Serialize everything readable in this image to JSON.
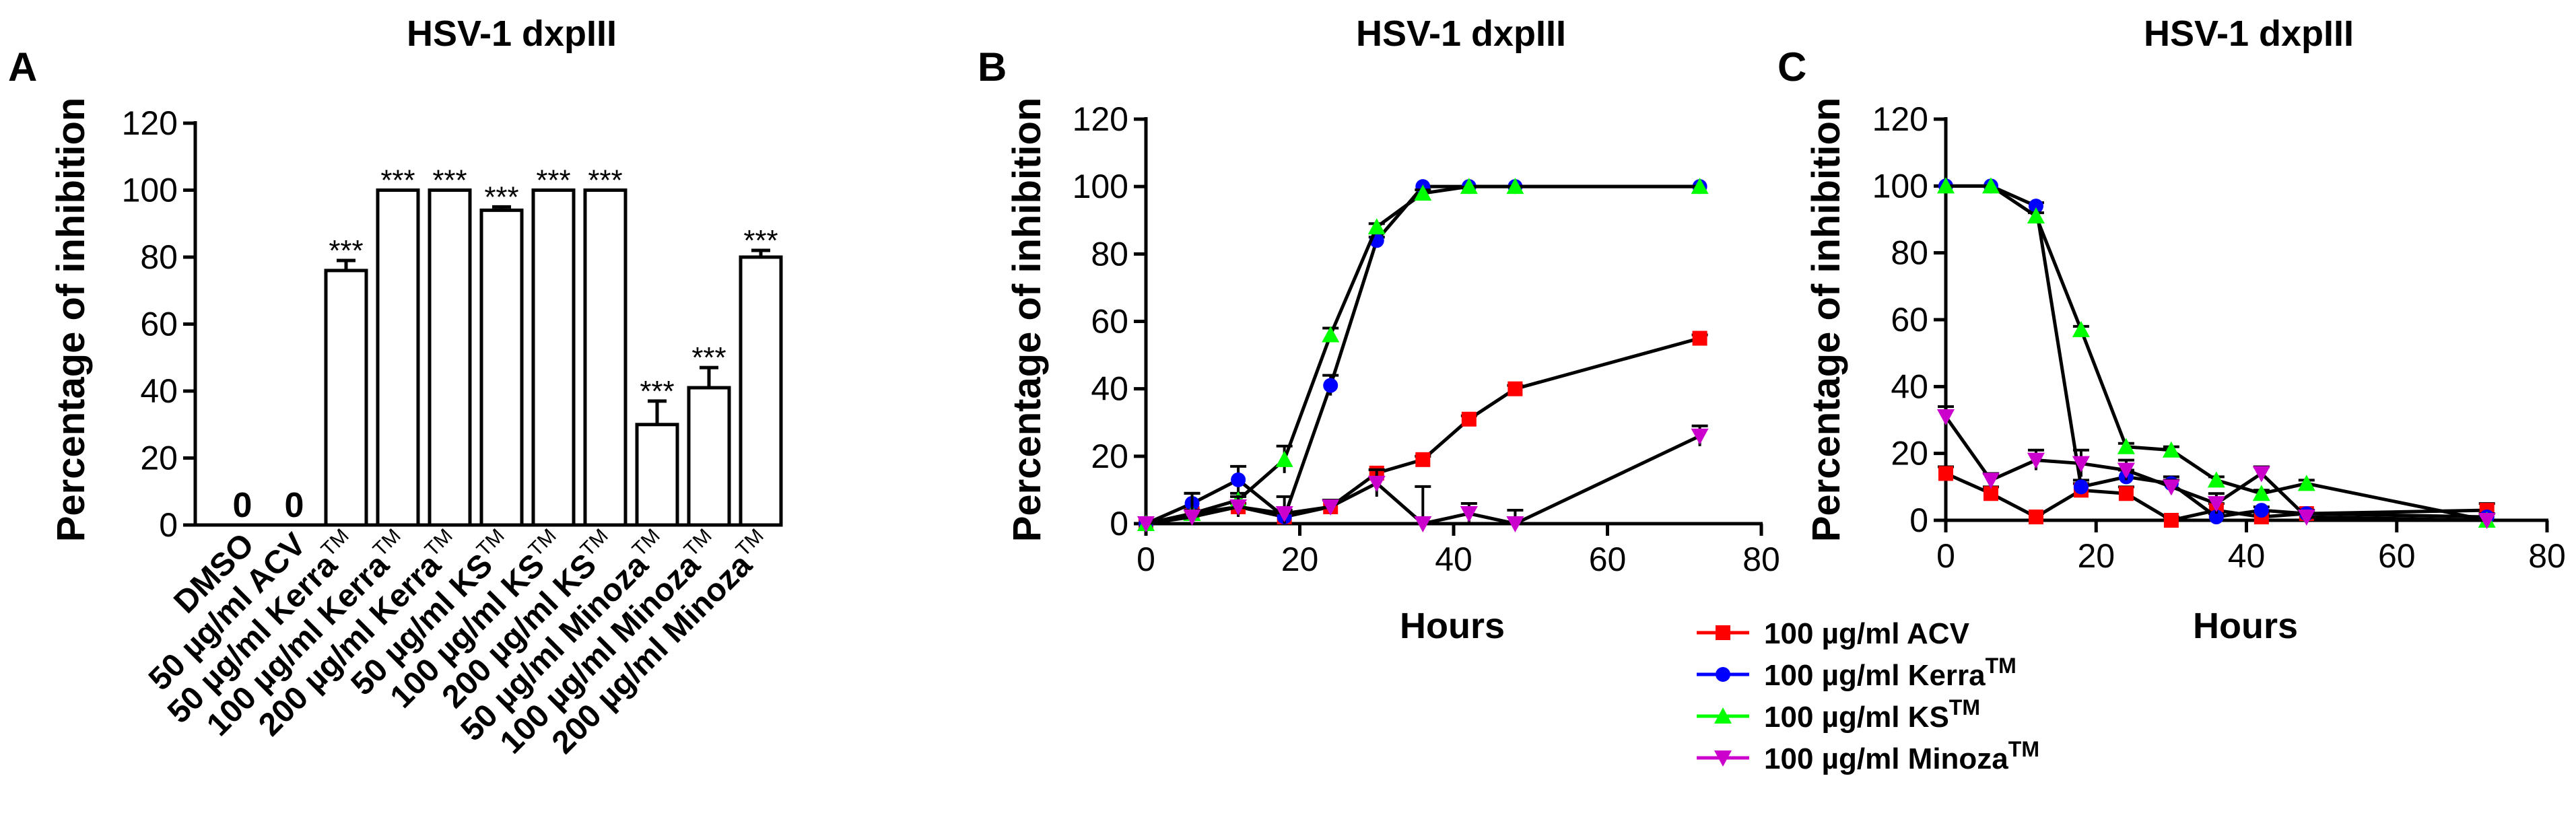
{
  "panel_a": {
    "label": "A",
    "title": "HSV-1 dxpIII",
    "ylabel": "Percentage of inhibition",
    "y_ticks": [
      "0",
      "20",
      "40",
      "60",
      "80",
      "100",
      "120"
    ]
  },
  "panel_b": {
    "label": "B",
    "title": "HSV-1 dxpIII",
    "ylabel": "Percentage of inhibition",
    "xlabel": "Hours",
    "y_ticks": [
      "0",
      "20",
      "40",
      "60",
      "80",
      "100",
      "120"
    ],
    "x_ticks": [
      "0",
      "20",
      "40",
      "60",
      "80"
    ]
  },
  "panel_c": {
    "label": "C",
    "title": "HSV-1 dxpIII",
    "ylabel": "Percentage of inhibition",
    "xlabel": "Hours",
    "y_ticks": [
      "0",
      "20",
      "40",
      "60",
      "80",
      "100",
      "120"
    ],
    "x_ticks": [
      "0",
      "20",
      "40",
      "60",
      "80"
    ]
  },
  "legend": {
    "items": [
      {
        "main": "100 µg/ml ACV",
        "sup": ""
      },
      {
        "main": "100 µg/ml Kerra",
        "sup": "TM"
      },
      {
        "main": "100 µg/ml KS",
        "sup": "TM"
      },
      {
        "main": "100 µg/ml Minoza",
        "sup": "TM"
      }
    ]
  },
  "colors": {
    "ACV": "#ff0000",
    "Kerra": "#0000ff",
    "KS": "#00ff00",
    "Minoza": "#cc00cc",
    "black": "#000000"
  },
  "chart_data": [
    {
      "type": "bar",
      "title": "HSV-1 dxpIII",
      "ylabel": "Percentage of inhibition",
      "xlabel": "",
      "ylim": [
        0,
        120
      ],
      "categories": [
        {
          "main": "DMSO",
          "sup": ""
        },
        {
          "main": "50 µg/ml ACV",
          "sup": ""
        },
        {
          "main": "50 µg/ml Kerra",
          "sup": "TM"
        },
        {
          "main": "100 µg/ml Kerra",
          "sup": "TM"
        },
        {
          "main": "200 µg/ml Kerra",
          "sup": "TM"
        },
        {
          "main": "50 µg/ml KS",
          "sup": "TM"
        },
        {
          "main": "100 µg/ml KS",
          "sup": "TM"
        },
        {
          "main": "200 µg/ml KS",
          "sup": "TM"
        },
        {
          "main": "50 µg/ml Minoza",
          "sup": "TM"
        },
        {
          "main": "100 µg/ml Minoza",
          "sup": "TM"
        },
        {
          "main": "200 µg/ml Minoza",
          "sup": "TM"
        }
      ],
      "values": [
        0,
        0,
        76,
        100,
        100,
        94,
        100,
        100,
        30,
        41,
        80
      ],
      "errors": [
        0,
        0,
        3,
        0,
        0,
        1,
        0,
        0,
        7,
        6,
        2
      ],
      "annotations": [
        "0",
        "0",
        "***",
        "***",
        "***",
        "***",
        "***",
        "***",
        "***",
        "***",
        "***"
      ]
    },
    {
      "type": "line",
      "title": "HSV-1 dxpIII",
      "xlabel": "Hours",
      "ylabel": "Percentage of inhibition",
      "xlim": [
        0,
        80
      ],
      "ylim": [
        0,
        120
      ],
      "series": [
        {
          "name": "100 µg/ml ACV",
          "key": "ACV",
          "marker": "square",
          "x": [
            0,
            6,
            12,
            18,
            24,
            30,
            36,
            42,
            48,
            72
          ],
          "y": [
            0,
            3,
            5,
            2,
            5,
            15,
            19,
            31,
            40,
            55
          ],
          "err": [
            0,
            1,
            1,
            1,
            2,
            1,
            1,
            1,
            1,
            1
          ]
        },
        {
          "name": "100 µg/ml Kerra",
          "sup": "TM",
          "key": "Kerra",
          "marker": "circle",
          "x": [
            0,
            6,
            12,
            18,
            24,
            30,
            36,
            42,
            48,
            72
          ],
          "y": [
            0,
            6,
            13,
            2,
            41,
            84,
            100,
            100,
            100,
            100
          ],
          "err": [
            0,
            3,
            4,
            2,
            3,
            1,
            0,
            0,
            0,
            0
          ]
        },
        {
          "name": "100 µg/ml KS",
          "sup": "TM",
          "key": "KS",
          "marker": "triangle-up",
          "x": [
            0,
            6,
            12,
            18,
            24,
            30,
            36,
            42,
            48,
            72
          ],
          "y": [
            0,
            3,
            7,
            19,
            56,
            88,
            98,
            100,
            100,
            100
          ],
          "err": [
            0,
            1,
            2,
            4,
            2,
            1,
            1,
            0,
            0,
            0
          ]
        },
        {
          "name": "100 µg/ml Minoza",
          "sup": "TM",
          "key": "Minoza",
          "marker": "triangle-down",
          "x": [
            0,
            6,
            12,
            18,
            24,
            30,
            36,
            42,
            48,
            72
          ],
          "y": [
            0,
            2,
            5,
            3,
            5,
            12,
            0,
            3,
            0,
            26
          ],
          "err": [
            0,
            7,
            3,
            5,
            2,
            4,
            11,
            3,
            4,
            3
          ]
        }
      ]
    },
    {
      "type": "line",
      "title": "HSV-1 dxpIII",
      "xlabel": "Hours",
      "ylabel": "Percentage of inhibition",
      "xlim": [
        0,
        80
      ],
      "ylim": [
        0,
        120
      ],
      "series": [
        {
          "name": "100 µg/ml ACV",
          "key": "ACV",
          "marker": "square",
          "x": [
            0,
            6,
            12,
            18,
            24,
            30,
            36,
            42,
            48,
            72
          ],
          "y": [
            14,
            8,
            1,
            9,
            8,
            0,
            3,
            1,
            2,
            3
          ],
          "err": [
            2,
            2,
            1,
            2,
            2,
            1,
            2,
            1,
            1,
            2
          ]
        },
        {
          "name": "100 µg/ml Kerra",
          "sup": "TM",
          "key": "Kerra",
          "marker": "circle",
          "x": [
            0,
            6,
            12,
            18,
            24,
            30,
            36,
            42,
            48,
            72
          ],
          "y": [
            100,
            100,
            94,
            10,
            13,
            11,
            1,
            3,
            2,
            1
          ],
          "err": [
            0,
            0,
            1,
            2,
            2,
            2,
            1,
            1,
            1,
            1
          ]
        },
        {
          "name": "100 µg/ml KS",
          "sup": "TM",
          "key": "KS",
          "marker": "triangle-up",
          "x": [
            0,
            6,
            12,
            18,
            24,
            30,
            36,
            42,
            48,
            72
          ],
          "y": [
            100,
            100,
            91,
            57,
            22,
            21,
            12,
            8,
            11,
            0
          ],
          "err": [
            0,
            0,
            1,
            1,
            1,
            1,
            1,
            1,
            1,
            0
          ]
        },
        {
          "name": "100 µg/ml Minoza",
          "sup": "TM",
          "key": "Minoza",
          "marker": "triangle-down",
          "x": [
            0,
            6,
            12,
            18,
            24,
            30,
            36,
            42,
            48,
            72
          ],
          "y": [
            31,
            12,
            18,
            17,
            15,
            10,
            5,
            14,
            1,
            0
          ],
          "err": [
            3,
            2,
            3,
            4,
            3,
            2,
            3,
            2,
            1,
            0
          ]
        }
      ]
    }
  ]
}
